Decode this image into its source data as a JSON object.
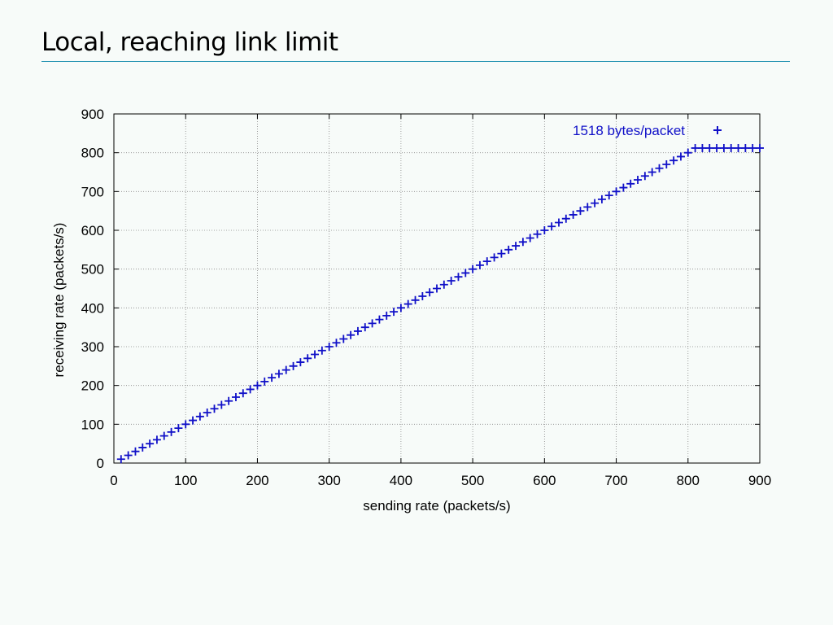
{
  "slide": {
    "title": "Local, reaching link limit"
  },
  "colors": {
    "background": "#f7fbf9",
    "title_rule": "#1e8fb0",
    "series": "#1010c8"
  },
  "chart_data": {
    "type": "scatter",
    "title": "",
    "xlabel": "sending rate (packets/s)",
    "ylabel": "receiving rate (packets/s)",
    "xlim": [
      0,
      900
    ],
    "ylim": [
      0,
      900
    ],
    "xticks": [
      0,
      100,
      200,
      300,
      400,
      500,
      600,
      700,
      800,
      900
    ],
    "yticks": [
      0,
      100,
      200,
      300,
      400,
      500,
      600,
      700,
      800,
      900
    ],
    "grid": true,
    "legend_position": "top-right",
    "marker": "+",
    "series": [
      {
        "name": "1518 bytes/packet",
        "x": [
          10,
          20,
          30,
          40,
          50,
          60,
          70,
          80,
          90,
          100,
          110,
          120,
          130,
          140,
          150,
          160,
          170,
          180,
          190,
          200,
          210,
          220,
          230,
          240,
          250,
          260,
          270,
          280,
          290,
          300,
          310,
          320,
          330,
          340,
          350,
          360,
          370,
          380,
          390,
          400,
          410,
          420,
          430,
          440,
          450,
          460,
          470,
          480,
          490,
          500,
          510,
          520,
          530,
          540,
          550,
          560,
          570,
          580,
          590,
          600,
          610,
          620,
          630,
          640,
          650,
          660,
          670,
          680,
          690,
          700,
          710,
          720,
          730,
          740,
          750,
          760,
          770,
          780,
          790,
          800,
          810,
          820,
          830,
          840,
          850,
          860,
          870,
          880,
          890,
          900
        ],
        "y": [
          10,
          20,
          30,
          40,
          50,
          60,
          70,
          80,
          90,
          100,
          110,
          120,
          130,
          140,
          150,
          160,
          170,
          180,
          190,
          200,
          210,
          220,
          230,
          240,
          250,
          260,
          270,
          280,
          290,
          300,
          310,
          320,
          330,
          340,
          350,
          360,
          370,
          380,
          390,
          400,
          410,
          420,
          430,
          440,
          450,
          460,
          470,
          480,
          490,
          500,
          510,
          520,
          530,
          540,
          550,
          560,
          570,
          580,
          590,
          600,
          610,
          620,
          630,
          640,
          650,
          660,
          670,
          680,
          690,
          700,
          710,
          720,
          730,
          740,
          750,
          760,
          770,
          780,
          790,
          800,
          812,
          812,
          812,
          812,
          812,
          812,
          812,
          812,
          812,
          812
        ]
      }
    ]
  }
}
